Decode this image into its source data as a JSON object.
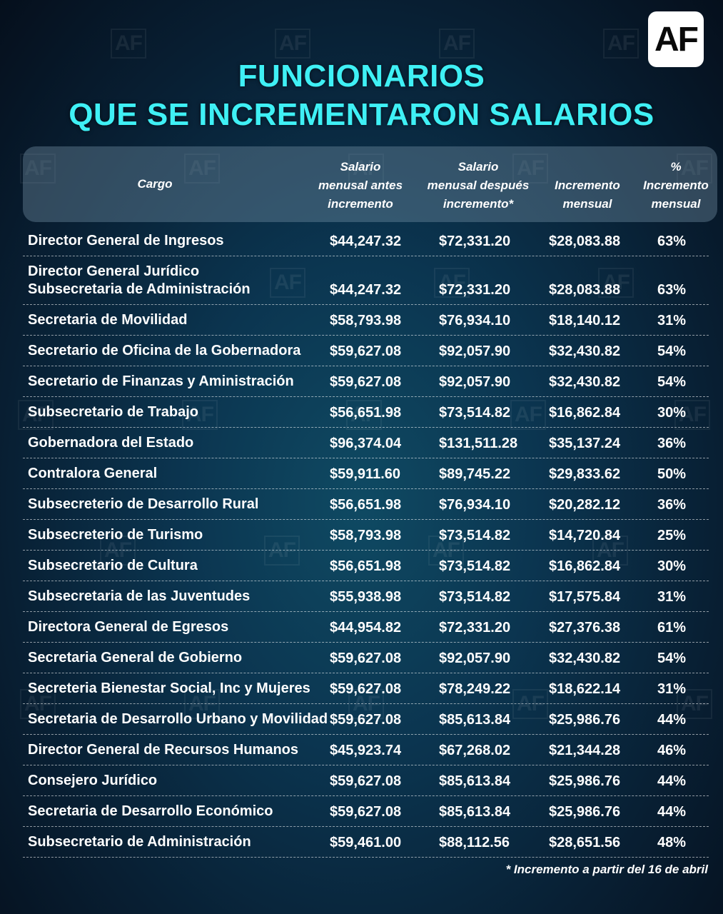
{
  "logo_text": "AF",
  "watermark_text": "AF",
  "title": {
    "line1": "FUNCIONARIOS",
    "line2": "QUE SE INCREMENTARON SALARIOS"
  },
  "headers": {
    "cargo": "Cargo",
    "antes": [
      "Salario",
      "menusal antes",
      "incremento"
    ],
    "despues": [
      "Salario",
      "menusal después",
      "incremento*"
    ],
    "incremento": [
      "Incremento",
      "mensual"
    ],
    "pct": [
      "%",
      "Incremento",
      "mensual"
    ]
  },
  "rows": [
    {
      "cargo": [
        "Director General de Ingresos"
      ],
      "antes": "$44,247.32",
      "despues": "$72,331.20",
      "incremento": "$28,083.88",
      "pct": "63%"
    },
    {
      "cargo": [
        "Director General Jurídico",
        "Subsecretaria de Administración"
      ],
      "antes": "$44,247.32",
      "despues": "$72,331.20",
      "incremento": "$28,083.88",
      "pct": "63%"
    },
    {
      "cargo": [
        "Secretaria de Movilidad"
      ],
      "antes": "$58,793.98",
      "despues": "$76,934.10",
      "incremento": "$18,140.12",
      "pct": "31%"
    },
    {
      "cargo": [
        "Secretario de Oficina de la Gobernadora"
      ],
      "antes": "$59,627.08",
      "despues": "$92,057.90",
      "incremento": "$32,430.82",
      "pct": "54%"
    },
    {
      "cargo": [
        "Secretario de Finanzas y Aministración"
      ],
      "antes": "$59,627.08",
      "despues": "$92,057.90",
      "incremento": "$32,430.82",
      "pct": "54%"
    },
    {
      "cargo": [
        "Subsecretario de Trabajo"
      ],
      "antes": "$56,651.98",
      "despues": "$73,514.82",
      "incremento": "$16,862.84",
      "pct": "30%"
    },
    {
      "cargo": [
        "Gobernadora del Estado"
      ],
      "antes": "$96,374.04",
      "despues": "$131,511.28",
      "incremento": "$35,137.24",
      "pct": "36%"
    },
    {
      "cargo": [
        "Contralora General"
      ],
      "antes": "$59,911.60",
      "despues": "$89,745.22",
      "incremento": "$29,833.62",
      "pct": "50%"
    },
    {
      "cargo": [
        "Subsecreterio de Desarrollo Rural"
      ],
      "antes": "$56,651.98",
      "despues": "$76,934.10",
      "incremento": "$20,282.12",
      "pct": "36%"
    },
    {
      "cargo": [
        "Subsecreterio de Turismo"
      ],
      "antes": "$58,793.98",
      "despues": "$73,514.82",
      "incremento": "$14,720.84",
      "pct": "25%"
    },
    {
      "cargo": [
        "Subsecretario de Cultura"
      ],
      "antes": "$56,651.98",
      "despues": "$73,514.82",
      "incremento": "$16,862.84",
      "pct": "30%"
    },
    {
      "cargo": [
        "Subsecretaria de las Juventudes"
      ],
      "antes": "$55,938.98",
      "despues": "$73,514.82",
      "incremento": "$17,575.84",
      "pct": "31%"
    },
    {
      "cargo": [
        "Directora General de Egresos"
      ],
      "antes": "$44,954.82",
      "despues": "$72,331.20",
      "incremento": "$27,376.38",
      "pct": "61%"
    },
    {
      "cargo": [
        "Secretaria General de Gobierno"
      ],
      "antes": "$59,627.08",
      "despues": "$92,057.90",
      "incremento": "$32,430.82",
      "pct": "54%"
    },
    {
      "cargo": [
        "Secreteria Bienestar Social, Inc y Mujeres"
      ],
      "antes": "$59,627.08",
      "despues": "$78,249.22",
      "incremento": "$18,622.14",
      "pct": "31%"
    },
    {
      "cargo": [
        "Secretaria de Desarrollo Urbano y Movilidad"
      ],
      "antes": "$59,627.08",
      "despues": "$85,613.84",
      "incremento": "$25,986.76",
      "pct": "44%"
    },
    {
      "cargo": [
        "Director General de Recursos Humanos"
      ],
      "antes": "$45,923.74",
      "despues": "$67,268.02",
      "incremento": "$21,344.28",
      "pct": "46%"
    },
    {
      "cargo": [
        "Consejero Jurídico"
      ],
      "antes": "$59,627.08",
      "despues": "$85,613.84",
      "incremento": "$25,986.76",
      "pct": "44%"
    },
    {
      "cargo": [
        "Secretaria de Desarrollo Económico"
      ],
      "antes": "$59,627.08",
      "despues": "$85,613.84",
      "incremento": "$25,986.76",
      "pct": "44%"
    },
    {
      "cargo": [
        "Subsecretario de Administración"
      ],
      "antes": "$59,461.00",
      "despues": "$88,112.56",
      "incremento": "$28,651.56",
      "pct": "48%"
    }
  ],
  "footnote": "* Incremento a partir del 16 de abril",
  "colors": {
    "title": "#3ff0f5",
    "background_center": "#0f4a63",
    "background_edge": "#050f1c",
    "header_band": "#7896aa"
  }
}
